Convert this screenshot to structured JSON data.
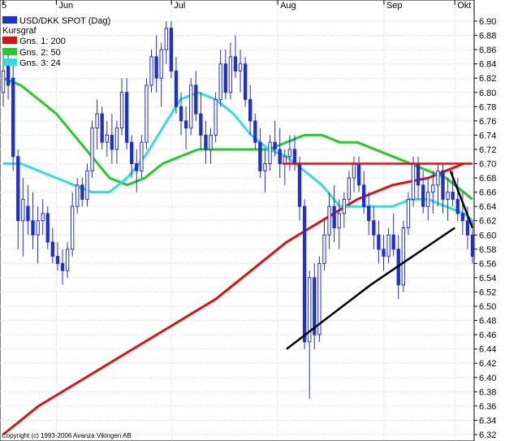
{
  "chart_data": {
    "type": "candlestick",
    "title": "USD/DKK SPOT (Dag)",
    "subtitle": "Kursgraf",
    "copyright": "Copyright (c) 1993-2006 Avanza Vikingen AB",
    "ylim": [
      6.32,
      6.9
    ],
    "y_ticks": [
      "6.90",
      "6.88",
      "6.86",
      "6.84",
      "6.82",
      "6.80",
      "6.78",
      "6.76",
      "6.74",
      "6.72",
      "6.70",
      "6.68",
      "6.66",
      "6.64",
      "6.62",
      "6.60",
      "6.58",
      "6.56",
      "6.54",
      "6.52",
      "6.50",
      "6.48",
      "6.46",
      "6.44",
      "6.42",
      "6.40",
      "6.38",
      "6.36",
      "6.34",
      "6.32"
    ],
    "x_labels": [
      {
        "label": "5",
        "day": 0
      },
      {
        "label": "Jun",
        "day": 12
      },
      {
        "label": "Jul",
        "day": 38
      },
      {
        "label": "Aug",
        "day": 62
      },
      {
        "label": "Sep",
        "day": 86
      },
      {
        "label": "Okt",
        "day": 102
      }
    ],
    "x_range": [
      0,
      106
    ],
    "grid": true,
    "legend_position": "top-left",
    "legend": [
      {
        "label": "Gns. 1: 200",
        "color": "#dd1111"
      },
      {
        "label": "Gns. 2: 50",
        "color": "#22cc22"
      },
      {
        "label": "Gns. 3: 24",
        "color": "#33dddd"
      }
    ],
    "candle_color": "#1f2fd0",
    "candles": [
      [
        6.8,
        6.86,
        6.78,
        6.83
      ],
      [
        6.84,
        6.86,
        6.79,
        6.81
      ],
      [
        6.82,
        6.84,
        6.69,
        6.71
      ],
      [
        6.71,
        6.72,
        6.58,
        6.62
      ],
      [
        6.62,
        6.68,
        6.57,
        6.65
      ],
      [
        6.64,
        6.67,
        6.6,
        6.62
      ],
      [
        6.62,
        6.66,
        6.58,
        6.6
      ],
      [
        6.6,
        6.64,
        6.56,
        6.62
      ],
      [
        6.62,
        6.65,
        6.6,
        6.63
      ],
      [
        6.63,
        6.64,
        6.58,
        6.59
      ],
      [
        6.59,
        6.61,
        6.56,
        6.57
      ],
      [
        6.57,
        6.59,
        6.55,
        6.56
      ],
      [
        6.56,
        6.58,
        6.53,
        6.55
      ],
      [
        6.55,
        6.59,
        6.54,
        6.58
      ],
      [
        6.58,
        6.66,
        6.57,
        6.64
      ],
      [
        6.64,
        6.68,
        6.63,
        6.67
      ],
      [
        6.67,
        6.68,
        6.64,
        6.65
      ],
      [
        6.65,
        6.7,
        6.64,
        6.69
      ],
      [
        6.69,
        6.76,
        6.68,
        6.75
      ],
      [
        6.75,
        6.79,
        6.72,
        6.77
      ],
      [
        6.77,
        6.78,
        6.72,
        6.73
      ],
      [
        6.73,
        6.76,
        6.71,
        6.74
      ],
      [
        6.74,
        6.77,
        6.7,
        6.72
      ],
      [
        6.72,
        6.76,
        6.7,
        6.75
      ],
      [
        6.75,
        6.82,
        6.74,
        6.8
      ],
      [
        6.8,
        6.82,
        6.72,
        6.73
      ],
      [
        6.73,
        6.74,
        6.68,
        6.7
      ],
      [
        6.7,
        6.72,
        6.66,
        6.69
      ],
      [
        6.69,
        6.74,
        6.68,
        6.73
      ],
      [
        6.73,
        6.82,
        6.72,
        6.81
      ],
      [
        6.81,
        6.86,
        6.8,
        6.85
      ],
      [
        6.85,
        6.88,
        6.8,
        6.82
      ],
      [
        6.82,
        6.87,
        6.78,
        6.86
      ],
      [
        6.86,
        6.9,
        6.84,
        6.89
      ],
      [
        6.89,
        6.9,
        6.82,
        6.83
      ],
      [
        6.83,
        6.85,
        6.77,
        6.78
      ],
      [
        6.78,
        6.8,
        6.74,
        6.76
      ],
      [
        6.76,
        6.78,
        6.72,
        6.75
      ],
      [
        6.75,
        6.82,
        6.74,
        6.81
      ],
      [
        6.81,
        6.83,
        6.76,
        6.77
      ],
      [
        6.77,
        6.8,
        6.72,
        6.74
      ],
      [
        6.74,
        6.76,
        6.7,
        6.72
      ],
      [
        6.72,
        6.75,
        6.7,
        6.74
      ],
      [
        6.74,
        6.8,
        6.73,
        6.79
      ],
      [
        6.79,
        6.86,
        6.78,
        6.84
      ],
      [
        6.84,
        6.86,
        6.79,
        6.8
      ],
      [
        6.8,
        6.87,
        6.79,
        6.85
      ],
      [
        6.85,
        6.88,
        6.82,
        6.83
      ],
      [
        6.83,
        6.86,
        6.8,
        6.84
      ],
      [
        6.84,
        6.85,
        6.78,
        6.79
      ],
      [
        6.79,
        6.81,
        6.74,
        6.76
      ],
      [
        6.76,
        6.77,
        6.72,
        6.73
      ],
      [
        6.73,
        6.75,
        6.68,
        6.69
      ],
      [
        6.69,
        6.72,
        6.66,
        6.7
      ],
      [
        6.7,
        6.74,
        6.69,
        6.73
      ],
      [
        6.73,
        6.76,
        6.71,
        6.72
      ],
      [
        6.72,
        6.75,
        6.68,
        6.7
      ],
      [
        6.7,
        6.72,
        6.67,
        6.71
      ],
      [
        6.71,
        6.74,
        6.69,
        6.72
      ],
      [
        6.72,
        6.74,
        6.69,
        6.7
      ],
      [
        6.7,
        6.71,
        6.62,
        6.64
      ],
      [
        6.64,
        6.65,
        6.44,
        6.45
      ],
      [
        6.45,
        6.55,
        6.37,
        6.54
      ],
      [
        6.54,
        6.56,
        6.44,
        6.46
      ],
      [
        6.46,
        6.57,
        6.45,
        6.56
      ],
      [
        6.56,
        6.62,
        6.55,
        6.6
      ],
      [
        6.6,
        6.66,
        6.58,
        6.64
      ],
      [
        6.64,
        6.67,
        6.59,
        6.61
      ],
      [
        6.61,
        6.65,
        6.58,
        6.63
      ],
      [
        6.63,
        6.66,
        6.61,
        6.65
      ],
      [
        6.65,
        6.69,
        6.64,
        6.68
      ],
      [
        6.68,
        6.71,
        6.66,
        6.7
      ],
      [
        6.7,
        6.71,
        6.66,
        6.67
      ],
      [
        6.67,
        6.69,
        6.63,
        6.64
      ],
      [
        6.64,
        6.66,
        6.6,
        6.62
      ],
      [
        6.62,
        6.64,
        6.58,
        6.6
      ],
      [
        6.6,
        6.62,
        6.56,
        6.58
      ],
      [
        6.58,
        6.6,
        6.55,
        6.57
      ],
      [
        6.57,
        6.61,
        6.56,
        6.6
      ],
      [
        6.6,
        6.63,
        6.57,
        6.58
      ],
      [
        6.58,
        6.6,
        6.51,
        6.53
      ],
      [
        6.53,
        6.62,
        6.52,
        6.61
      ],
      [
        6.61,
        6.66,
        6.6,
        6.65
      ],
      [
        6.65,
        6.71,
        6.64,
        6.7
      ],
      [
        6.7,
        6.71,
        6.65,
        6.67
      ],
      [
        6.67,
        6.69,
        6.63,
        6.64
      ],
      [
        6.64,
        6.68,
        6.62,
        6.66
      ],
      [
        6.66,
        6.69,
        6.63,
        6.67
      ],
      [
        6.67,
        6.7,
        6.64,
        6.69
      ],
      [
        6.69,
        6.7,
        6.63,
        6.65
      ],
      [
        6.65,
        6.68,
        6.62,
        6.66
      ],
      [
        6.66,
        6.69,
        6.64,
        6.65
      ],
      [
        6.65,
        6.68,
        6.62,
        6.63
      ],
      [
        6.63,
        6.66,
        6.6,
        6.62
      ],
      [
        6.62,
        6.64,
        6.58,
        6.6
      ],
      [
        6.6,
        6.62,
        6.56,
        6.57
      ]
    ],
    "moving_averages": [
      {
        "label": "Gns. 1: 200",
        "color": "#dd1111",
        "points": [
          [
            0,
            6.32
          ],
          [
            8,
            6.36
          ],
          [
            16,
            6.39
          ],
          [
            24,
            6.42
          ],
          [
            32,
            6.45
          ],
          [
            40,
            6.48
          ],
          [
            48,
            6.51
          ],
          [
            56,
            6.55
          ],
          [
            64,
            6.59
          ],
          [
            72,
            6.62
          ],
          [
            80,
            6.65
          ],
          [
            88,
            6.67
          ],
          [
            96,
            6.68
          ],
          [
            100,
            6.69
          ],
          [
            104,
            6.7
          ]
        ]
      },
      {
        "label": "Gns. 2: 50",
        "color": "#22cc22",
        "points": [
          [
            0,
            6.82
          ],
          [
            4,
            6.81
          ],
          [
            8,
            6.79
          ],
          [
            12,
            6.77
          ],
          [
            16,
            6.74
          ],
          [
            20,
            6.71
          ],
          [
            24,
            6.68
          ],
          [
            28,
            6.67
          ],
          [
            32,
            6.68
          ],
          [
            36,
            6.7
          ],
          [
            40,
            6.71
          ],
          [
            44,
            6.72
          ],
          [
            48,
            6.72
          ],
          [
            52,
            6.72
          ],
          [
            56,
            6.72
          ],
          [
            60,
            6.72
          ],
          [
            64,
            6.73
          ],
          [
            68,
            6.74
          ],
          [
            72,
            6.74
          ],
          [
            76,
            6.73
          ],
          [
            80,
            6.73
          ],
          [
            84,
            6.72
          ],
          [
            88,
            6.71
          ],
          [
            92,
            6.7
          ],
          [
            96,
            6.69
          ],
          [
            100,
            6.68
          ],
          [
            104,
            6.66
          ],
          [
            106,
            6.65
          ]
        ]
      },
      {
        "label": "Gns. 3: 24",
        "color": "#33dddd",
        "points": [
          [
            0,
            6.7
          ],
          [
            4,
            6.7
          ],
          [
            8,
            6.69
          ],
          [
            12,
            6.68
          ],
          [
            16,
            6.67
          ],
          [
            20,
            6.66
          ],
          [
            24,
            6.66
          ],
          [
            28,
            6.68
          ],
          [
            32,
            6.71
          ],
          [
            36,
            6.75
          ],
          [
            40,
            6.79
          ],
          [
            44,
            6.8
          ],
          [
            48,
            6.79
          ],
          [
            52,
            6.77
          ],
          [
            56,
            6.74
          ],
          [
            60,
            6.72
          ],
          [
            64,
            6.71
          ],
          [
            68,
            6.69
          ],
          [
            72,
            6.67
          ],
          [
            76,
            6.64
          ],
          [
            80,
            6.64
          ],
          [
            84,
            6.64
          ],
          [
            88,
            6.64
          ],
          [
            92,
            6.65
          ],
          [
            96,
            6.65
          ],
          [
            100,
            6.64
          ],
          [
            104,
            6.63
          ],
          [
            106,
            6.62
          ]
        ]
      }
    ],
    "trendlines": [
      {
        "color": "#dd1111",
        "points": [
          [
            63,
            6.7
          ],
          [
            106,
            6.7
          ]
        ]
      },
      {
        "color": "#000000",
        "points": [
          [
            64,
            6.44
          ],
          [
            83,
            6.53
          ],
          [
            102,
            6.61
          ]
        ]
      },
      {
        "color": "#000000",
        "points": [
          [
            101,
            6.69
          ],
          [
            106,
            6.61
          ]
        ]
      }
    ]
  }
}
